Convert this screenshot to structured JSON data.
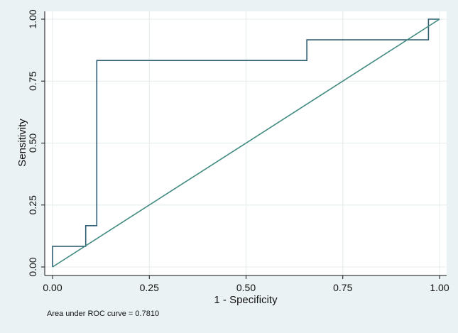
{
  "chart_data": {
    "type": "line",
    "title": "",
    "xlabel": "1 - Specificity",
    "ylabel": "Sensitivity",
    "xlim": [
      0,
      1
    ],
    "ylim": [
      0,
      1
    ],
    "xticks": [
      0,
      0.25,
      0.5,
      0.75,
      1
    ],
    "yticks": [
      0,
      0.25,
      0.5,
      0.75,
      1
    ],
    "xtick_labels": [
      "0.00",
      "0.25",
      "0.50",
      "0.75",
      "1.00"
    ],
    "ytick_labels": [
      "0.00",
      "0.25",
      "0.50",
      "0.75",
      "1.00"
    ],
    "grid": true,
    "legend": "none",
    "series": [
      {
        "color": "#2f5f73",
        "step": true,
        "x": [
          0,
          0,
          0.0857,
          0.0857,
          0.1143,
          0.1143,
          0.6571,
          0.6571,
          0.9714,
          0.9714,
          1
        ],
        "y": [
          0,
          0.0833,
          0.0833,
          0.1667,
          0.1667,
          0.8333,
          0.8333,
          0.9167,
          0.9167,
          1,
          1
        ]
      },
      {
        "color": "#3f8a7f",
        "reference": true,
        "x": [
          0,
          1
        ],
        "y": [
          0,
          1
        ]
      }
    ],
    "annotation": "Area under ROC curve = 0.7810"
  }
}
